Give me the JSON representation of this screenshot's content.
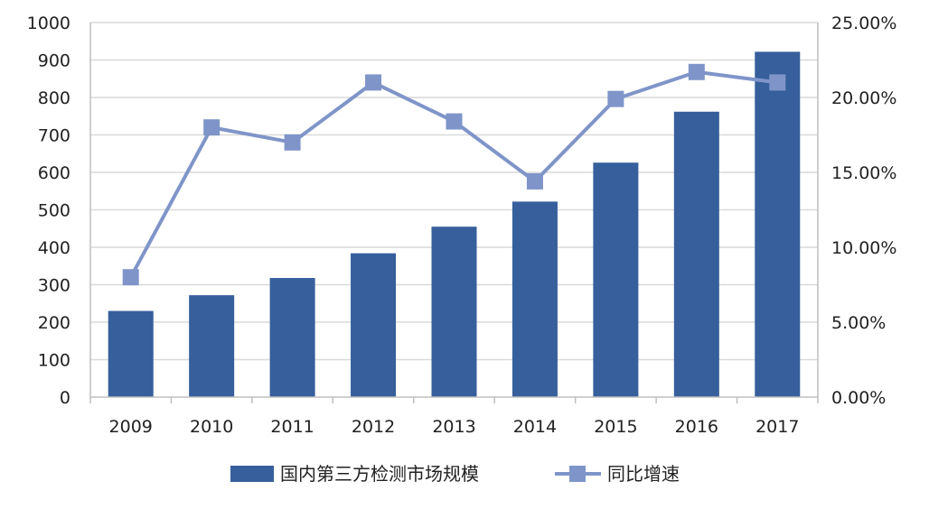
{
  "chart_data": {
    "type": "bar",
    "categories": [
      "2009",
      "2010",
      "2011",
      "2012",
      "2013",
      "2014",
      "2015",
      "2016",
      "2017"
    ],
    "series": [
      {
        "name": "国内第三方检测市场规模",
        "type": "bar",
        "axis": "left",
        "values": [
          230,
          272,
          318,
          384,
          455,
          522,
          626,
          762,
          922
        ]
      },
      {
        "name": "同比增速",
        "type": "line",
        "axis": "right",
        "values": [
          0.08,
          0.18,
          0.17,
          0.21,
          0.184,
          0.144,
          0.199,
          0.217,
          0.21
        ]
      }
    ],
    "y_left": {
      "min": 0,
      "max": 1000,
      "step": 100,
      "tick_labels": [
        "0",
        "100",
        "200",
        "300",
        "400",
        "500",
        "600",
        "700",
        "800",
        "900",
        "1000"
      ]
    },
    "y_right": {
      "min": 0,
      "max": 0.25,
      "step": 0.05,
      "tick_labels": [
        "0.00%",
        "5.00%",
        "10.00%",
        "15.00%",
        "20.00%",
        "25.00%"
      ]
    },
    "grid": true,
    "legend_position": "bottom",
    "colors": {
      "bar": "#365f9b",
      "line": "#7f95c9",
      "grid": "#d9d9d9",
      "axis": "#bfbfbf"
    }
  }
}
